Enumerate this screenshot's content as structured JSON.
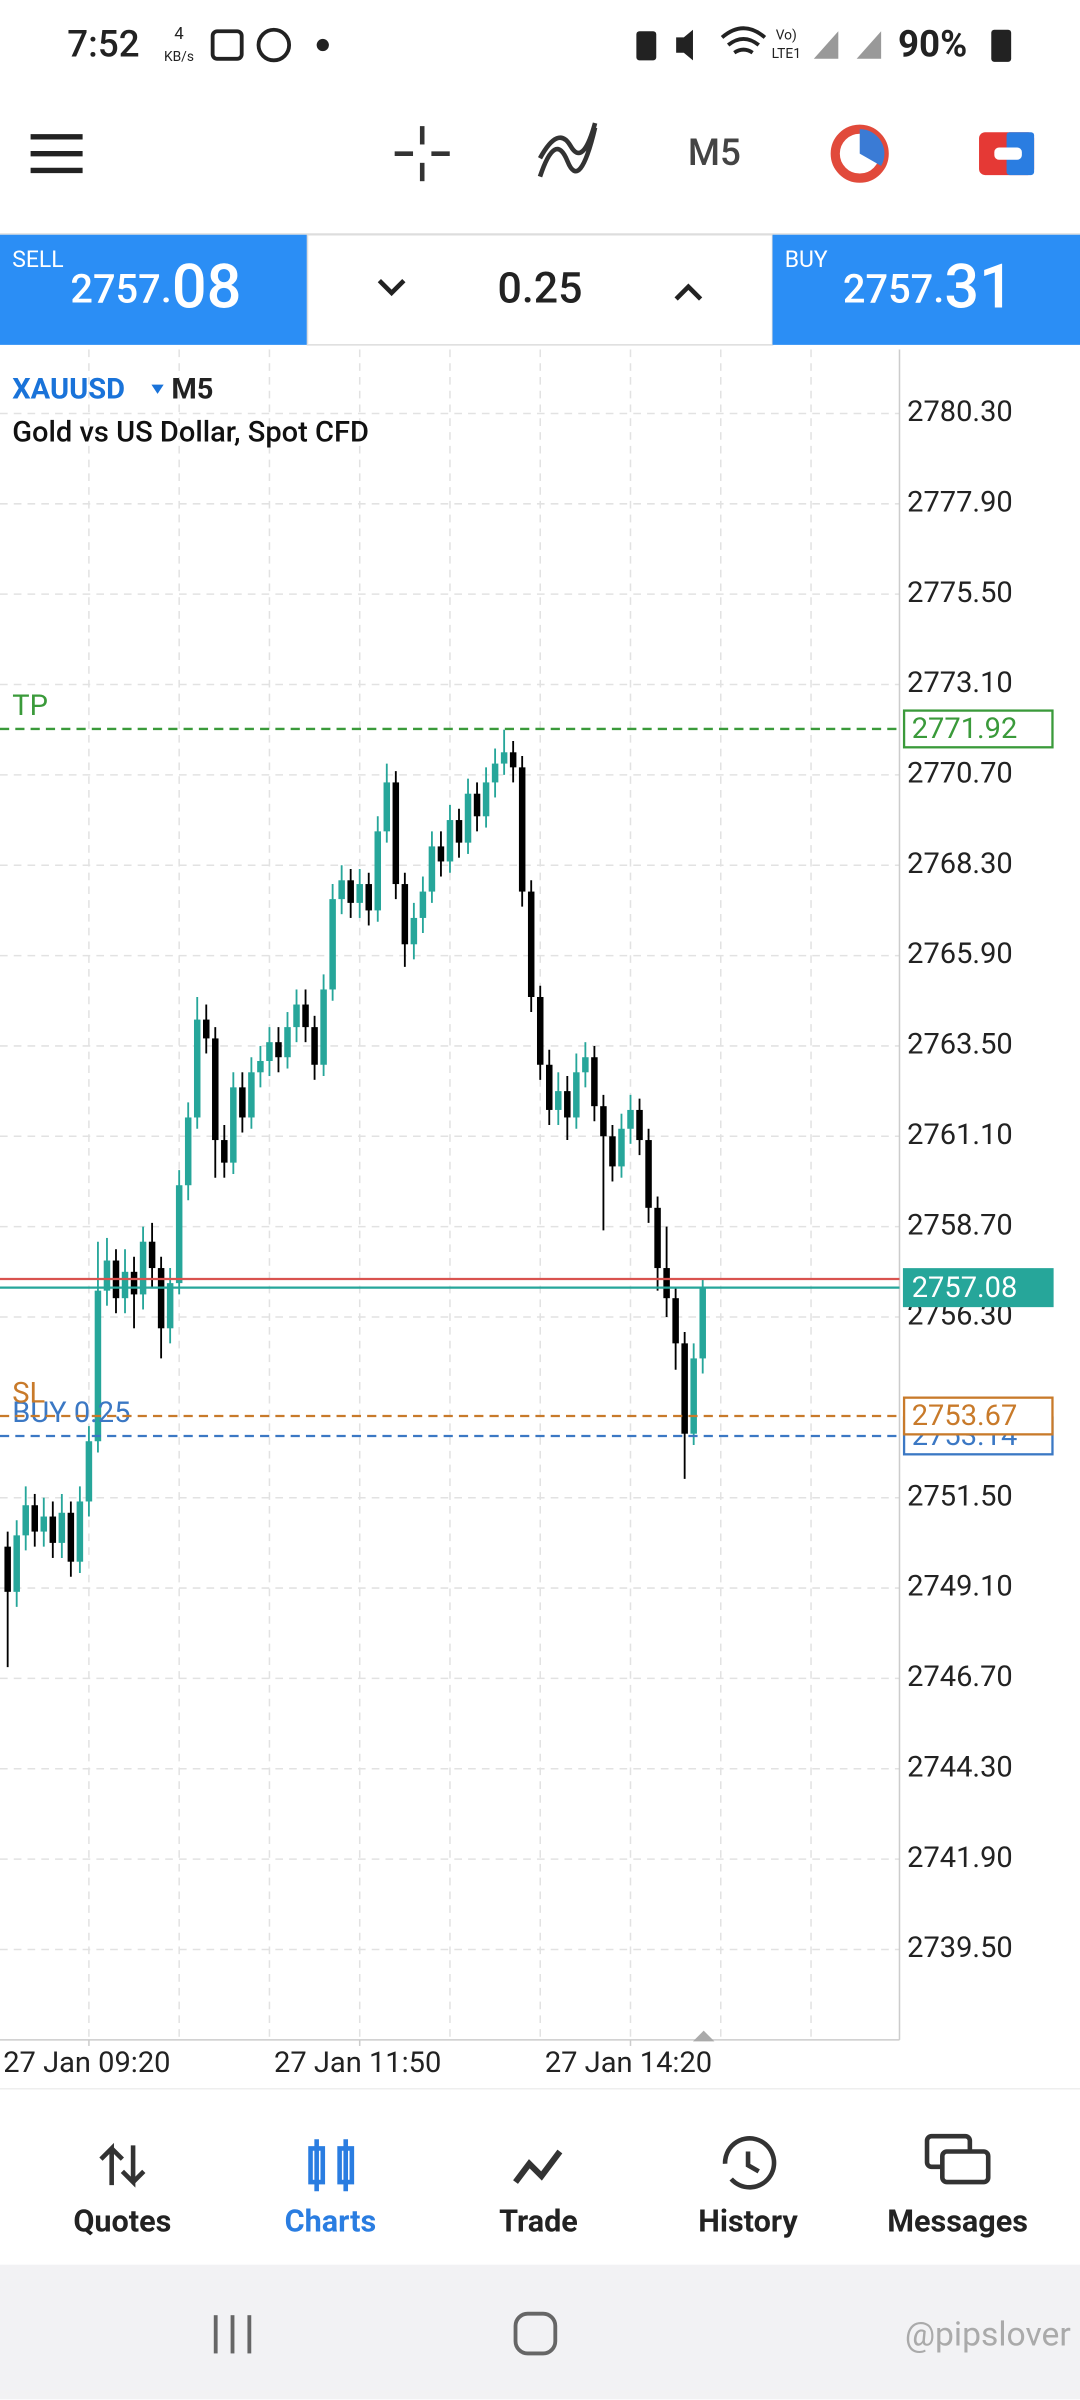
{
  "status_bar": {
    "time": "7:52",
    "net_speed": "4",
    "net_unit": "KB/s",
    "signal_top": "Vo)",
    "signal_bottom": "LTE1",
    "battery": "90%"
  },
  "toolbar": {
    "timeframe": "M5"
  },
  "trade_panel": {
    "sell_label": "SELL",
    "sell_price": "2757.08",
    "lot": "0.25",
    "buy_label": "BUY",
    "buy_price": "2757.31"
  },
  "chart_header": {
    "symbol": "XAUUSD",
    "timeframe": "M5",
    "description": "Gold vs US Dollar, Spot CFD"
  },
  "chart_data": {
    "type": "candlestick",
    "up_color": "#26a69a",
    "down_color": "#000000",
    "grid": true,
    "xlim": [
      -0.85,
      98.8
    ],
    "ylim": [
      2737.1,
      2782.0
    ],
    "xticks": [
      {
        "value": 9,
        "label": "27 Jan 09:20"
      },
      {
        "value": 39,
        "label": "27 Jan 11:50"
      },
      {
        "value": 69,
        "label": "27 Jan 14:20"
      }
    ],
    "xgrid": [
      9,
      19,
      29,
      39,
      49,
      59,
      69,
      79,
      89
    ],
    "yticks": [
      {
        "value": 2780.3,
        "label": "2780.30"
      },
      {
        "value": 2777.9,
        "label": "2777.90"
      },
      {
        "value": 2775.5,
        "label": "2775.50"
      },
      {
        "value": 2773.1,
        "label": "2773.10"
      },
      {
        "value": 2770.7,
        "label": "2770.70"
      },
      {
        "value": 2768.3,
        "label": "2768.30"
      },
      {
        "value": 2765.9,
        "label": "2765.90"
      },
      {
        "value": 2763.5,
        "label": "2763.50"
      },
      {
        "value": 2761.1,
        "label": "2761.10"
      },
      {
        "value": 2758.7,
        "label": "2758.70"
      },
      {
        "value": 2756.3,
        "label": "2756.30"
      },
      {
        "value": 2751.5,
        "label": "2751.50"
      },
      {
        "value": 2749.1,
        "label": "2749.10"
      },
      {
        "value": 2746.7,
        "label": "2746.70"
      },
      {
        "value": 2744.3,
        "label": "2744.30"
      },
      {
        "value": 2741.9,
        "label": "2741.90"
      },
      {
        "value": 2739.5,
        "label": "2739.50"
      }
    ],
    "ohlc": [
      [
        2750.2,
        2750.6,
        2747.0,
        2749.0
      ],
      [
        2749.0,
        2750.9,
        2748.6,
        2750.5
      ],
      [
        2750.5,
        2751.8,
        2750.1,
        2751.3
      ],
      [
        2751.3,
        2751.6,
        2750.2,
        2750.6
      ],
      [
        2750.6,
        2751.5,
        2750.2,
        2751.0
      ],
      [
        2751.0,
        2751.4,
        2749.9,
        2750.3
      ],
      [
        2750.3,
        2751.6,
        2749.9,
        2751.1
      ],
      [
        2751.1,
        2751.4,
        2749.4,
        2749.8
      ],
      [
        2749.8,
        2751.8,
        2749.5,
        2751.4
      ],
      [
        2751.4,
        2753.4,
        2751.0,
        2753.0
      ],
      [
        2753.0,
        2758.3,
        2752.7,
        2757.0
      ],
      [
        2757.0,
        2758.4,
        2756.6,
        2757.8
      ],
      [
        2757.8,
        2758.1,
        2756.4,
        2756.8
      ],
      [
        2756.8,
        2758.1,
        2756.4,
        2757.5
      ],
      [
        2757.5,
        2757.9,
        2756.0,
        2756.9
      ],
      [
        2756.9,
        2758.7,
        2756.5,
        2758.3
      ],
      [
        2758.3,
        2758.8,
        2757.1,
        2757.6
      ],
      [
        2757.6,
        2757.9,
        2755.2,
        2756.0
      ],
      [
        2756.0,
        2757.6,
        2755.6,
        2757.2
      ],
      [
        2757.2,
        2760.2,
        2756.9,
        2759.8
      ],
      [
        2759.8,
        2762.0,
        2759.4,
        2761.6
      ],
      [
        2761.6,
        2764.8,
        2761.3,
        2764.2
      ],
      [
        2764.2,
        2764.6,
        2763.3,
        2763.7
      ],
      [
        2763.7,
        2764.0,
        2760.0,
        2761.0
      ],
      [
        2761.0,
        2761.4,
        2760.0,
        2760.4
      ],
      [
        2760.4,
        2762.8,
        2760.1,
        2762.4
      ],
      [
        2762.4,
        2762.8,
        2761.2,
        2761.6
      ],
      [
        2761.6,
        2763.2,
        2761.3,
        2762.8
      ],
      [
        2762.8,
        2763.5,
        2762.4,
        2763.1
      ],
      [
        2763.1,
        2764.0,
        2762.7,
        2763.6
      ],
      [
        2763.6,
        2764.0,
        2762.8,
        2763.2
      ],
      [
        2763.2,
        2764.4,
        2762.9,
        2764.0
      ],
      [
        2764.0,
        2765.0,
        2763.6,
        2764.6
      ],
      [
        2764.6,
        2765.0,
        2763.6,
        2764.0
      ],
      [
        2764.0,
        2764.3,
        2762.6,
        2763.0
      ],
      [
        2763.0,
        2765.4,
        2762.7,
        2765.0
      ],
      [
        2765.0,
        2767.8,
        2764.7,
        2767.4
      ],
      [
        2767.4,
        2768.3,
        2767.0,
        2767.9
      ],
      [
        2767.9,
        2768.2,
        2766.9,
        2767.3
      ],
      [
        2767.3,
        2768.2,
        2766.9,
        2767.8
      ],
      [
        2767.8,
        2768.1,
        2766.7,
        2767.1
      ],
      [
        2767.1,
        2769.6,
        2766.8,
        2769.2
      ],
      [
        2769.2,
        2771.0,
        2768.9,
        2770.5
      ],
      [
        2770.5,
        2770.8,
        2767.4,
        2767.8
      ],
      [
        2767.8,
        2768.1,
        2765.6,
        2766.2
      ],
      [
        2766.2,
        2767.3,
        2765.8,
        2766.9
      ],
      [
        2766.9,
        2768.0,
        2766.5,
        2767.6
      ],
      [
        2767.6,
        2769.2,
        2767.3,
        2768.8
      ],
      [
        2768.8,
        2769.2,
        2768.0,
        2768.4
      ],
      [
        2768.4,
        2769.9,
        2768.1,
        2769.5
      ],
      [
        2769.5,
        2769.8,
        2768.5,
        2768.9
      ],
      [
        2768.9,
        2770.6,
        2768.6,
        2770.2
      ],
      [
        2770.2,
        2770.5,
        2769.2,
        2769.6
      ],
      [
        2769.6,
        2770.9,
        2769.3,
        2770.5
      ],
      [
        2770.5,
        2771.4,
        2770.1,
        2771.0
      ],
      [
        2771.0,
        2771.9,
        2770.7,
        2771.3
      ],
      [
        2771.3,
        2771.6,
        2770.5,
        2770.9
      ],
      [
        2770.9,
        2771.2,
        2767.2,
        2767.6
      ],
      [
        2767.6,
        2767.9,
        2764.4,
        2764.8
      ],
      [
        2764.8,
        2765.1,
        2762.6,
        2763.0
      ],
      [
        2763.0,
        2763.4,
        2761.4,
        2761.8
      ],
      [
        2761.8,
        2762.8,
        2761.4,
        2762.3
      ],
      [
        2762.3,
        2762.7,
        2761.0,
        2761.6
      ],
      [
        2761.6,
        2763.3,
        2761.3,
        2762.8
      ],
      [
        2762.8,
        2763.6,
        2762.4,
        2763.2
      ],
      [
        2763.2,
        2763.5,
        2761.5,
        2761.9
      ],
      [
        2761.9,
        2762.2,
        2758.6,
        2761.1
      ],
      [
        2761.1,
        2761.4,
        2759.9,
        2760.3
      ],
      [
        2760.3,
        2761.7,
        2760.0,
        2761.3
      ],
      [
        2761.3,
        2762.2,
        2760.9,
        2761.8
      ],
      [
        2761.8,
        2762.1,
        2760.6,
        2761.0
      ],
      [
        2761.0,
        2761.3,
        2758.8,
        2759.2
      ],
      [
        2759.2,
        2759.5,
        2757.0,
        2757.6
      ],
      [
        2757.6,
        2758.7,
        2756.3,
        2756.8
      ],
      [
        2756.8,
        2757.1,
        2754.9,
        2755.6
      ],
      [
        2755.6,
        2755.9,
        2752.0,
        2753.2
      ],
      [
        2753.2,
        2755.6,
        2752.9,
        2755.2
      ],
      [
        2755.2,
        2757.3,
        2754.8,
        2757.1
      ]
    ],
    "levels": [
      {
        "name": "TP",
        "value": 2771.92,
        "color": "#3a9a3a",
        "dashed": true,
        "tag": "box"
      },
      {
        "name": "BUY 0.25",
        "value": 2753.14,
        "color": "#3b78c4",
        "dashed": true,
        "tag": "box"
      },
      {
        "name": "SL",
        "value": 2753.67,
        "color": "#c87a2a",
        "dashed": true,
        "tag": "box"
      },
      {
        "value": 2757.31,
        "color": "#d9534f",
        "dashed": false,
        "tag": "none"
      },
      {
        "value": 2757.08,
        "color": "#26a69a",
        "dashed": false,
        "tag": "filled"
      }
    ]
  },
  "nav": {
    "items": [
      "Quotes",
      "Charts",
      "Trade",
      "History",
      "Messages"
    ],
    "active": 1
  },
  "watermark": "@pipslover"
}
